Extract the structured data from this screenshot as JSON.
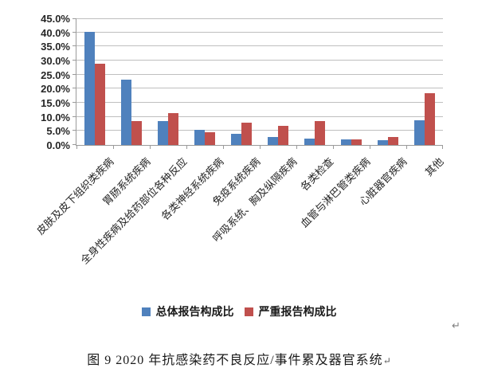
{
  "page": {
    "paragraph_return_mark": "↵"
  },
  "chart_data": {
    "type": "bar",
    "title": "",
    "xlabel": "",
    "ylabel": "",
    "categories": [
      "皮肤及皮下组织类疾病",
      "胃肠系统疾病",
      "全身性疾病及给药部位各种反应",
      "各类神经系统疾病",
      "免疫系统疾病",
      "呼吸系统、胸及纵隔疾病",
      "各类检查",
      "血管与淋巴管类疾病",
      "心脏器官疾病",
      "其他"
    ],
    "series": [
      {
        "name": "总体报告构成比",
        "color": "#4F81BD",
        "values": [
          40.3,
          23.1,
          8.4,
          5.5,
          4.1,
          2.7,
          2.3,
          2.0,
          1.7,
          8.9
        ]
      },
      {
        "name": "严重报告构成比",
        "color": "#C0504D",
        "values": [
          28.8,
          8.4,
          11.2,
          4.4,
          7.8,
          6.9,
          8.4,
          2.0,
          2.7,
          18.4
        ]
      }
    ],
    "ylim": [
      0,
      45
    ],
    "ytick_step": 5,
    "ytick_decimals": 1,
    "ytick_suffix": "%",
    "grid": true,
    "legend_position": "bottom",
    "gridline_color": "#BFBFBF",
    "axis_color": "#9A9A9A",
    "tick_label_color": "#262626"
  },
  "caption": {
    "text": "图 9  2020 年抗感染药不良反应/事件累及器官系统",
    "return_mark": "↵"
  }
}
